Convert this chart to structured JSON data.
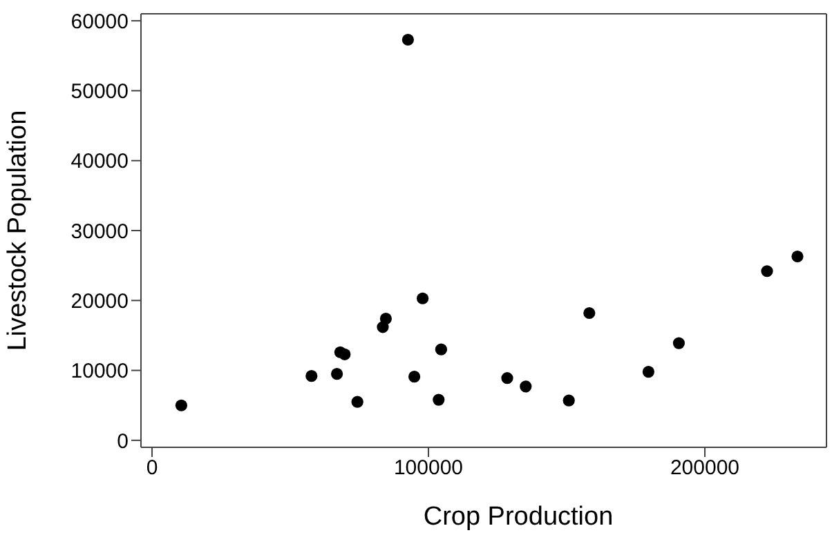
{
  "chart_data": {
    "type": "scatter",
    "xlabel": "Crop Production",
    "ylabel": "Livestock Population",
    "x": [
      10600,
      57700,
      66900,
      68100,
      69700,
      74300,
      83500,
      84600,
      92600,
      94900,
      97900,
      103700,
      104600,
      128500,
      135200,
      150800,
      158200,
      179600,
      190600,
      222500,
      233500
    ],
    "series": [
      {
        "color": "#000000",
        "values": [
          5000,
          9200,
          9500,
          12600,
          12300,
          5500,
          16200,
          17400,
          57300,
          9100,
          20300,
          5800,
          13000,
          8900,
          7700,
          5700,
          18200,
          9800,
          13900,
          24200,
          26300
        ]
      }
    ],
    "xlim": [
      -4000,
      244000
    ],
    "ylim": [
      -1000,
      61000
    ],
    "xticks": [
      0,
      100000,
      200000
    ],
    "yticks": [
      0,
      10000,
      20000,
      30000,
      40000,
      50000,
      60000
    ],
    "grid": false,
    "legend": false,
    "marker": "circle"
  }
}
